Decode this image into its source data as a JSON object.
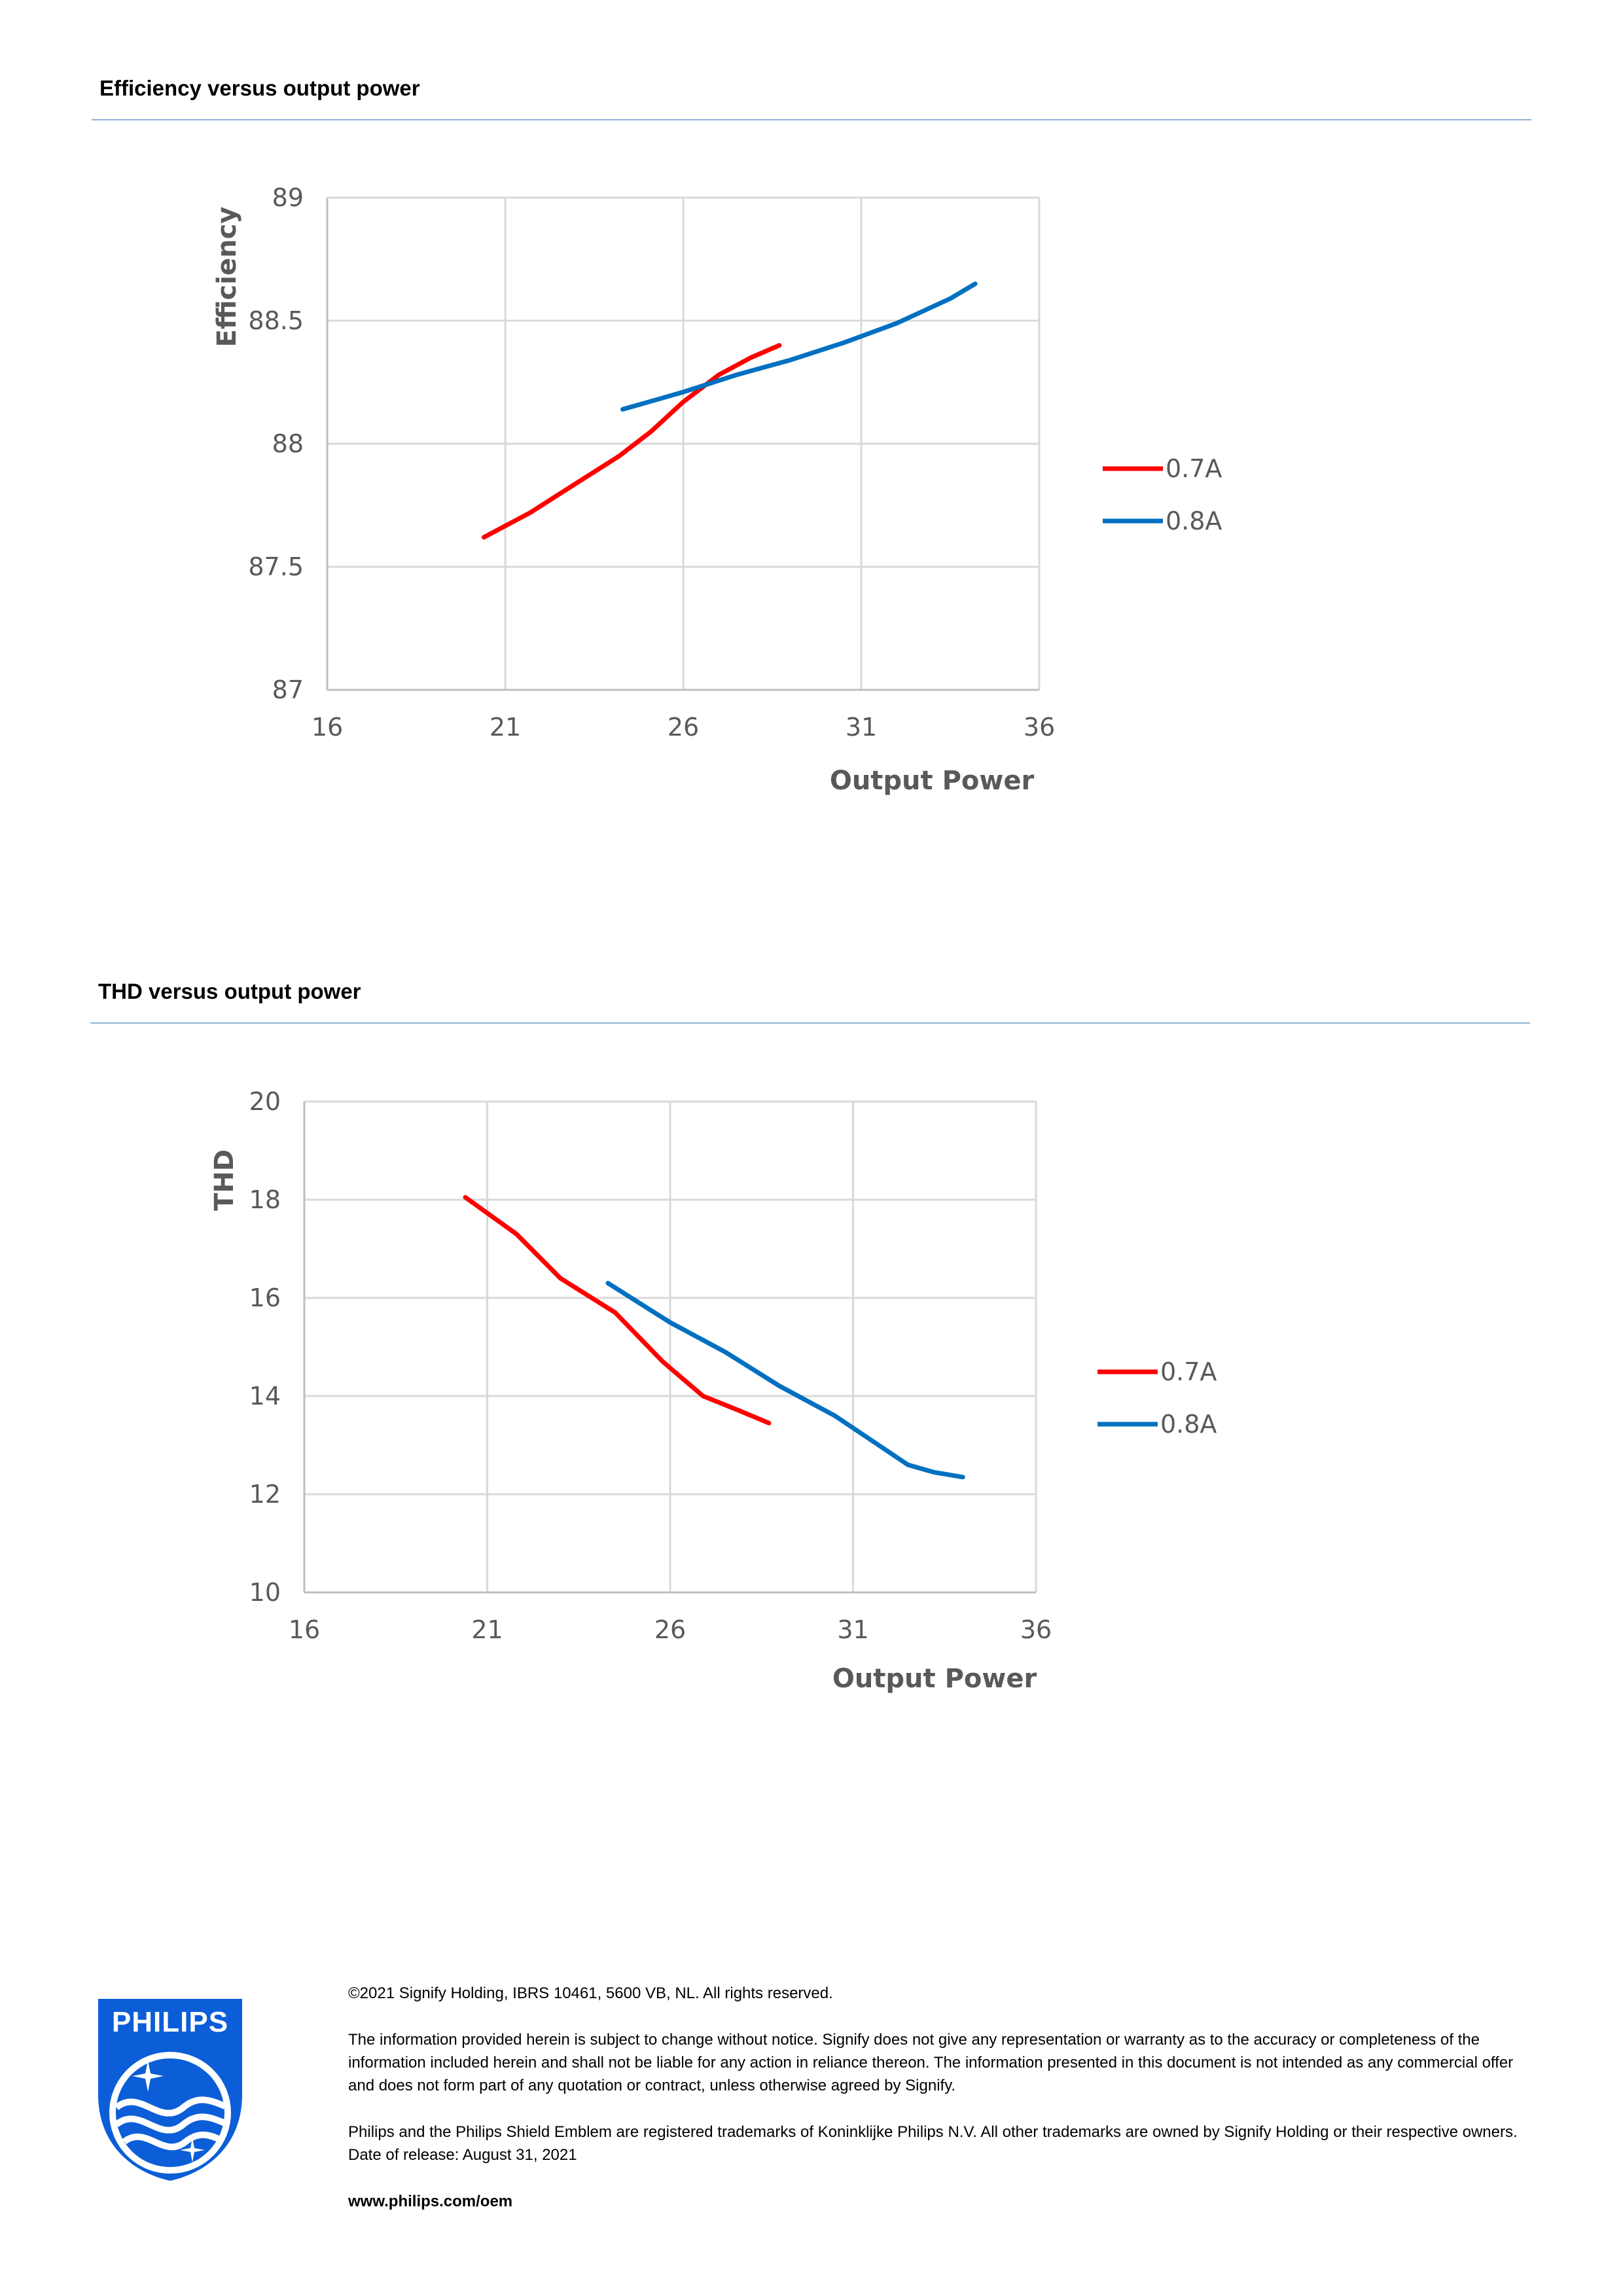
{
  "sections": [
    {
      "title": "Efficiency versus output power"
    },
    {
      "title": "THD versus output power"
    }
  ],
  "chart_data": [
    {
      "type": "line",
      "title": "",
      "xlabel": "Output Power",
      "ylabel": "Efficiency",
      "xlim": [
        16,
        36
      ],
      "ylim": [
        87,
        89
      ],
      "x_ticks": [
        "16",
        "21",
        "26",
        "31",
        "36"
      ],
      "y_ticks": [
        "87",
        "87.5",
        "88",
        "88.5",
        "89"
      ],
      "grid": true,
      "legend_position": "right",
      "series": [
        {
          "name": "0.7A",
          "color": "#ff0000",
          "x": [
            20.4,
            21.7,
            23.0,
            24.2,
            25.1,
            26.0,
            27.0,
            27.9,
            28.7
          ],
          "y": [
            87.62,
            87.72,
            87.84,
            87.95,
            88.05,
            88.17,
            88.28,
            88.35,
            88.4
          ]
        },
        {
          "name": "0.8A",
          "color": "#0070c0",
          "x": [
            24.3,
            26.0,
            27.5,
            29.0,
            30.5,
            32.0,
            33.5,
            34.2
          ],
          "y": [
            88.14,
            88.21,
            88.28,
            88.34,
            88.41,
            88.49,
            88.59,
            88.65
          ]
        }
      ]
    },
    {
      "type": "line",
      "title": "",
      "xlabel": "Output Power",
      "ylabel": "THD",
      "xlim": [
        16,
        36
      ],
      "ylim": [
        10,
        20
      ],
      "x_ticks": [
        "16",
        "21",
        "26",
        "31",
        "36"
      ],
      "y_ticks": [
        "10",
        "12",
        "14",
        "16",
        "18",
        "20"
      ],
      "grid": true,
      "legend_position": "right",
      "series": [
        {
          "name": "0.7A",
          "color": "#ff0000",
          "x": [
            20.4,
            21.8,
            23.0,
            24.5,
            25.8,
            26.9,
            27.9,
            28.7
          ],
          "y": [
            18.05,
            17.3,
            16.4,
            15.7,
            14.7,
            14.0,
            13.7,
            13.45
          ]
        },
        {
          "name": "0.8A",
          "color": "#0070c0",
          "x": [
            24.3,
            26.0,
            27.5,
            29.0,
            30.5,
            31.7,
            32.5,
            33.2,
            34.0
          ],
          "y": [
            16.3,
            15.5,
            14.9,
            14.2,
            13.6,
            13.0,
            12.6,
            12.45,
            12.35
          ]
        }
      ]
    }
  ],
  "footer": {
    "copyright": "©2021 Signify Holding, IBRS 10461, 5600 VB, NL. All rights reserved.",
    "disclaimer": "The information provided herein is subject to change without notice. Signify does not give any representation or warranty as to the accuracy or completeness of the information included herein and shall not be liable for any action in reliance thereon. The information presented in this document is not intended as any commercial offer and does not form part of any quotation or contract, unless otherwise agreed by Signify.",
    "trademarks": "Philips and the Philips Shield Emblem are registered trademarks of Koninklijke Philips N.V. All other trademarks are owned by Signify Holding or their respective owners.",
    "release": "Date of release: August 31, 2021",
    "url": "www.philips.com/oem"
  },
  "logo": {
    "text": "PHILIPS",
    "color": "#0b5ed7"
  }
}
